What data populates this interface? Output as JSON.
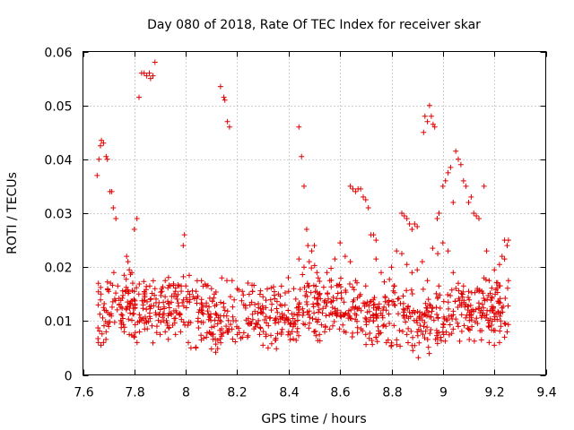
{
  "chart_data": {
    "type": "scatter",
    "title": "Day 080 of 2018, Rate Of TEC Index for receiver skar",
    "xlabel": "GPS time / hours",
    "ylabel": "ROTI / TECUs",
    "xlim": [
      7.6,
      9.4
    ],
    "ylim": [
      0,
      0.06
    ],
    "xticks": [
      7.6,
      7.8,
      8,
      8.2,
      8.4,
      8.6,
      8.8,
      9,
      9.2,
      9.4
    ],
    "xtick_labels": [
      "7.6",
      "7.8",
      "8",
      "8.2",
      "8.4",
      "8.6",
      "8.8",
      "9",
      "9.2",
      "9.4"
    ],
    "yticks": [
      0,
      0.01,
      0.02,
      0.03,
      0.04,
      0.05,
      0.06
    ],
    "ytick_labels": [
      "0",
      "0.01",
      "0.02",
      "0.03",
      "0.04",
      "0.05",
      "0.06"
    ],
    "grid": true,
    "marker": "+",
    "color": "#e00000",
    "series": [
      {
        "name": "ROTI",
        "points": [
          [
            7.655,
            0.037
          ],
          [
            7.662,
            0.04
          ],
          [
            7.668,
            0.0425
          ],
          [
            7.672,
            0.0435
          ],
          [
            7.68,
            0.043
          ],
          [
            7.69,
            0.0405
          ],
          [
            7.695,
            0.04
          ],
          [
            7.705,
            0.034
          ],
          [
            7.712,
            0.034
          ],
          [
            7.718,
            0.031
          ],
          [
            7.728,
            0.029
          ],
          [
            7.77,
            0.022
          ],
          [
            7.775,
            0.021
          ],
          [
            7.79,
            0.019
          ],
          [
            7.8,
            0.027
          ],
          [
            7.81,
            0.029
          ],
          [
            7.818,
            0.0515
          ],
          [
            7.828,
            0.056
          ],
          [
            7.838,
            0.056
          ],
          [
            7.848,
            0.0555
          ],
          [
            7.858,
            0.056
          ],
          [
            7.863,
            0.055
          ],
          [
            7.872,
            0.0555
          ],
          [
            7.88,
            0.058
          ],
          [
            7.99,
            0.024
          ],
          [
            7.995,
            0.026
          ],
          [
            8.135,
            0.0535
          ],
          [
            8.148,
            0.0515
          ],
          [
            8.152,
            0.051
          ],
          [
            8.162,
            0.047
          ],
          [
            8.17,
            0.046
          ],
          [
            8.44,
            0.046
          ],
          [
            8.45,
            0.0405
          ],
          [
            8.46,
            0.035
          ],
          [
            8.47,
            0.027
          ],
          [
            8.475,
            0.024
          ],
          [
            8.48,
            0.021
          ],
          [
            8.49,
            0.023
          ],
          [
            8.5,
            0.024
          ],
          [
            8.51,
            0.019
          ],
          [
            8.515,
            0.018
          ],
          [
            8.64,
            0.035
          ],
          [
            8.65,
            0.0345
          ],
          [
            8.66,
            0.034
          ],
          [
            8.67,
            0.0345
          ],
          [
            8.68,
            0.0345
          ],
          [
            8.69,
            0.033
          ],
          [
            8.7,
            0.0325
          ],
          [
            8.71,
            0.031
          ],
          [
            8.72,
            0.026
          ],
          [
            8.73,
            0.026
          ],
          [
            8.74,
            0.025
          ],
          [
            8.84,
            0.03
          ],
          [
            8.85,
            0.0295
          ],
          [
            8.86,
            0.029
          ],
          [
            8.87,
            0.028
          ],
          [
            8.88,
            0.027
          ],
          [
            8.89,
            0.028
          ],
          [
            8.9,
            0.0275
          ],
          [
            8.925,
            0.045
          ],
          [
            8.93,
            0.048
          ],
          [
            8.94,
            0.047
          ],
          [
            8.948,
            0.05
          ],
          [
            8.955,
            0.048
          ],
          [
            8.962,
            0.0465
          ],
          [
            8.968,
            0.046
          ],
          [
            8.978,
            0.029
          ],
          [
            8.985,
            0.03
          ],
          [
            9.0,
            0.035
          ],
          [
            9.01,
            0.036
          ],
          [
            9.02,
            0.0375
          ],
          [
            9.03,
            0.0385
          ],
          [
            9.04,
            0.032
          ],
          [
            9.05,
            0.0415
          ],
          [
            9.06,
            0.04
          ],
          [
            9.07,
            0.039
          ],
          [
            9.08,
            0.036
          ],
          [
            9.09,
            0.035
          ],
          [
            9.1,
            0.032
          ],
          [
            9.11,
            0.033
          ],
          [
            9.12,
            0.03
          ],
          [
            9.13,
            0.0295
          ],
          [
            9.14,
            0.029
          ],
          [
            9.16,
            0.035
          ],
          [
            9.17,
            0.023
          ],
          [
            9.23,
            0.022
          ],
          [
            9.24,
            0.025
          ],
          [
            9.25,
            0.024
          ],
          [
            9.255,
            0.025
          ],
          [
            7.66,
            0.006
          ],
          [
            7.67,
            0.0055
          ],
          [
            7.68,
            0.006
          ],
          [
            7.69,
            0.008
          ],
          [
            7.7,
            0.009
          ],
          [
            7.76,
            0.008
          ],
          [
            7.78,
            0.0075
          ],
          [
            7.8,
            0.007
          ],
          [
            7.82,
            0.008
          ],
          [
            7.84,
            0.0085
          ],
          [
            7.9,
            0.0075
          ],
          [
            7.92,
            0.008
          ],
          [
            7.96,
            0.0075
          ],
          [
            7.98,
            0.008
          ],
          [
            8.01,
            0.006
          ],
          [
            8.02,
            0.005
          ],
          [
            8.04,
            0.005
          ],
          [
            8.06,
            0.0065
          ],
          [
            8.08,
            0.007
          ],
          [
            8.1,
            0.0075
          ],
          [
            8.2,
            0.0075
          ],
          [
            8.22,
            0.007
          ],
          [
            8.24,
            0.007
          ],
          [
            8.3,
            0.0055
          ],
          [
            8.32,
            0.005
          ],
          [
            8.35,
            0.0065
          ],
          [
            8.4,
            0.008
          ],
          [
            8.5,
            0.008
          ],
          [
            8.52,
            0.0075
          ],
          [
            8.54,
            0.008
          ],
          [
            8.56,
            0.0085
          ],
          [
            8.7,
            0.0075
          ],
          [
            8.74,
            0.007
          ],
          [
            8.78,
            0.006
          ],
          [
            8.8,
            0.0055
          ],
          [
            8.82,
            0.0065
          ],
          [
            8.86,
            0.0075
          ],
          [
            8.9,
            0.008
          ],
          [
            9.0,
            0.008
          ],
          [
            9.04,
            0.0085
          ],
          [
            9.06,
            0.009
          ],
          [
            9.1,
            0.0085
          ],
          [
            9.15,
            0.0065
          ],
          [
            9.18,
            0.006
          ],
          [
            9.2,
            0.0055
          ],
          [
            9.22,
            0.006
          ],
          [
            9.24,
            0.007
          ],
          [
            9.25,
            0.008
          ],
          [
            7.66,
            0.017
          ],
          [
            7.67,
            0.015
          ],
          [
            7.7,
            0.0155
          ],
          [
            7.72,
            0.019
          ],
          [
            7.76,
            0.0185
          ],
          [
            7.78,
            0.0195
          ],
          [
            7.8,
            0.0155
          ],
          [
            7.84,
            0.0145
          ],
          [
            7.86,
            0.0165
          ],
          [
            7.88,
            0.016
          ],
          [
            7.92,
            0.0175
          ],
          [
            7.94,
            0.0165
          ],
          [
            7.96,
            0.0155
          ],
          [
            8.0,
            0.0165
          ],
          [
            8.04,
            0.0155
          ],
          [
            8.08,
            0.0165
          ],
          [
            8.1,
            0.016
          ],
          [
            8.14,
            0.018
          ],
          [
            8.16,
            0.0175
          ],
          [
            8.18,
            0.0175
          ],
          [
            8.2,
            0.016
          ],
          [
            8.22,
            0.0155
          ],
          [
            8.26,
            0.0155
          ],
          [
            8.3,
            0.0145
          ],
          [
            8.36,
            0.015
          ],
          [
            8.4,
            0.0155
          ],
          [
            8.42,
            0.016
          ],
          [
            8.44,
            0.0215
          ],
          [
            8.46,
            0.02
          ],
          [
            8.48,
            0.0165
          ],
          [
            8.52,
            0.015
          ],
          [
            8.56,
            0.0175
          ],
          [
            8.58,
            0.0215
          ],
          [
            8.6,
            0.0245
          ],
          [
            8.62,
            0.022
          ],
          [
            8.64,
            0.021
          ],
          [
            8.66,
            0.0175
          ],
          [
            8.7,
            0.0165
          ],
          [
            8.74,
            0.0215
          ],
          [
            8.76,
            0.019
          ],
          [
            8.8,
            0.02
          ],
          [
            8.82,
            0.023
          ],
          [
            8.84,
            0.0225
          ],
          [
            8.86,
            0.0205
          ],
          [
            8.88,
            0.019
          ],
          [
            8.9,
            0.0195
          ],
          [
            8.92,
            0.021
          ],
          [
            8.94,
            0.0175
          ],
          [
            8.96,
            0.0235
          ],
          [
            8.98,
            0.0225
          ],
          [
            9.0,
            0.0245
          ],
          [
            9.02,
            0.023
          ],
          [
            9.04,
            0.019
          ],
          [
            9.06,
            0.017
          ],
          [
            9.08,
            0.0165
          ],
          [
            9.1,
            0.0155
          ],
          [
            9.14,
            0.0155
          ],
          [
            9.16,
            0.018
          ],
          [
            9.18,
            0.0175
          ],
          [
            9.2,
            0.0195
          ],
          [
            9.22,
            0.0205
          ],
          [
            9.24,
            0.0215
          ],
          [
            9.255,
            0.0175
          ]
        ]
      }
    ]
  }
}
